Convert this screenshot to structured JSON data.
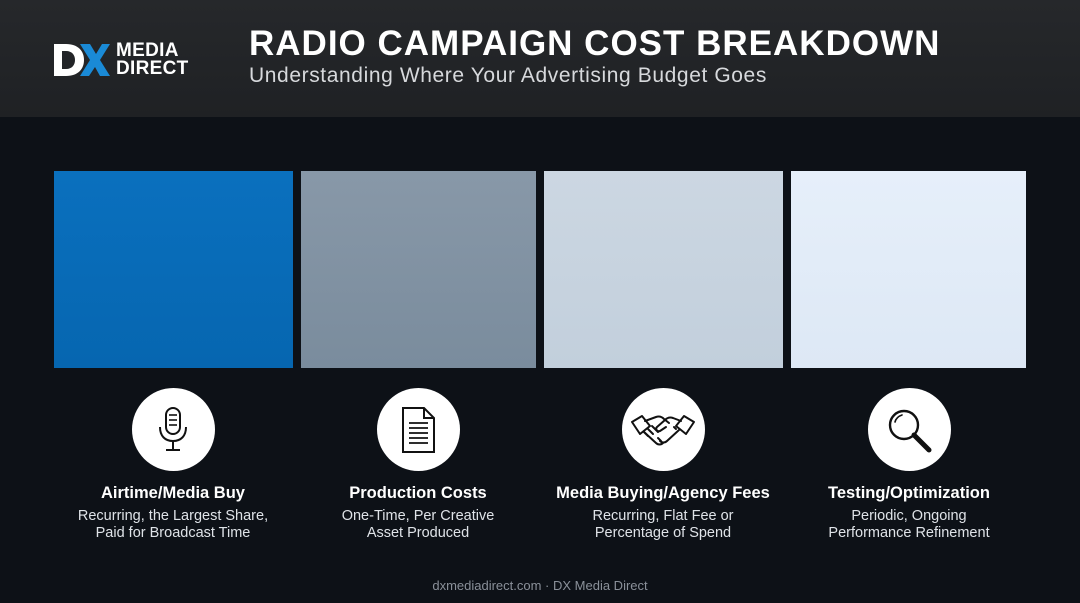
{
  "logo": {
    "mark": "DX",
    "line1": "MEDIA",
    "line2": "DIRECT"
  },
  "header": {
    "title": "RADIO CAMPAIGN COST BREAKDOWN",
    "subtitle": "Understanding Where Your Advertising Budget Goes"
  },
  "colors": {
    "block1": "#0a6cb8",
    "block2": "#8193a4",
    "block3": "#c7d3df",
    "block4": "#e2ecf8",
    "background": "#0d1117",
    "header": "#232528"
  },
  "categories": [
    {
      "icon": "microphone-icon",
      "title": "Airtime/Media Buy",
      "desc_line1": "Recurring, the Largest Share,",
      "desc_line2": "Paid for Broadcast Time"
    },
    {
      "icon": "document-icon",
      "title": "Production Costs",
      "desc_line1": "One-Time, Per Creative",
      "desc_line2": "Asset Produced"
    },
    {
      "icon": "handshake-icon",
      "title": "Media Buying/Agency Fees",
      "desc_line1": "Recurring, Flat Fee or",
      "desc_line2": "Percentage of Spend"
    },
    {
      "icon": "magnifier-icon",
      "title": "Testing/Optimization",
      "desc_line1": "Periodic, Ongoing",
      "desc_line2": "Performance Refinement"
    }
  ],
  "footer": {
    "text": "dxmediadirect.com · DX Media Direct"
  }
}
